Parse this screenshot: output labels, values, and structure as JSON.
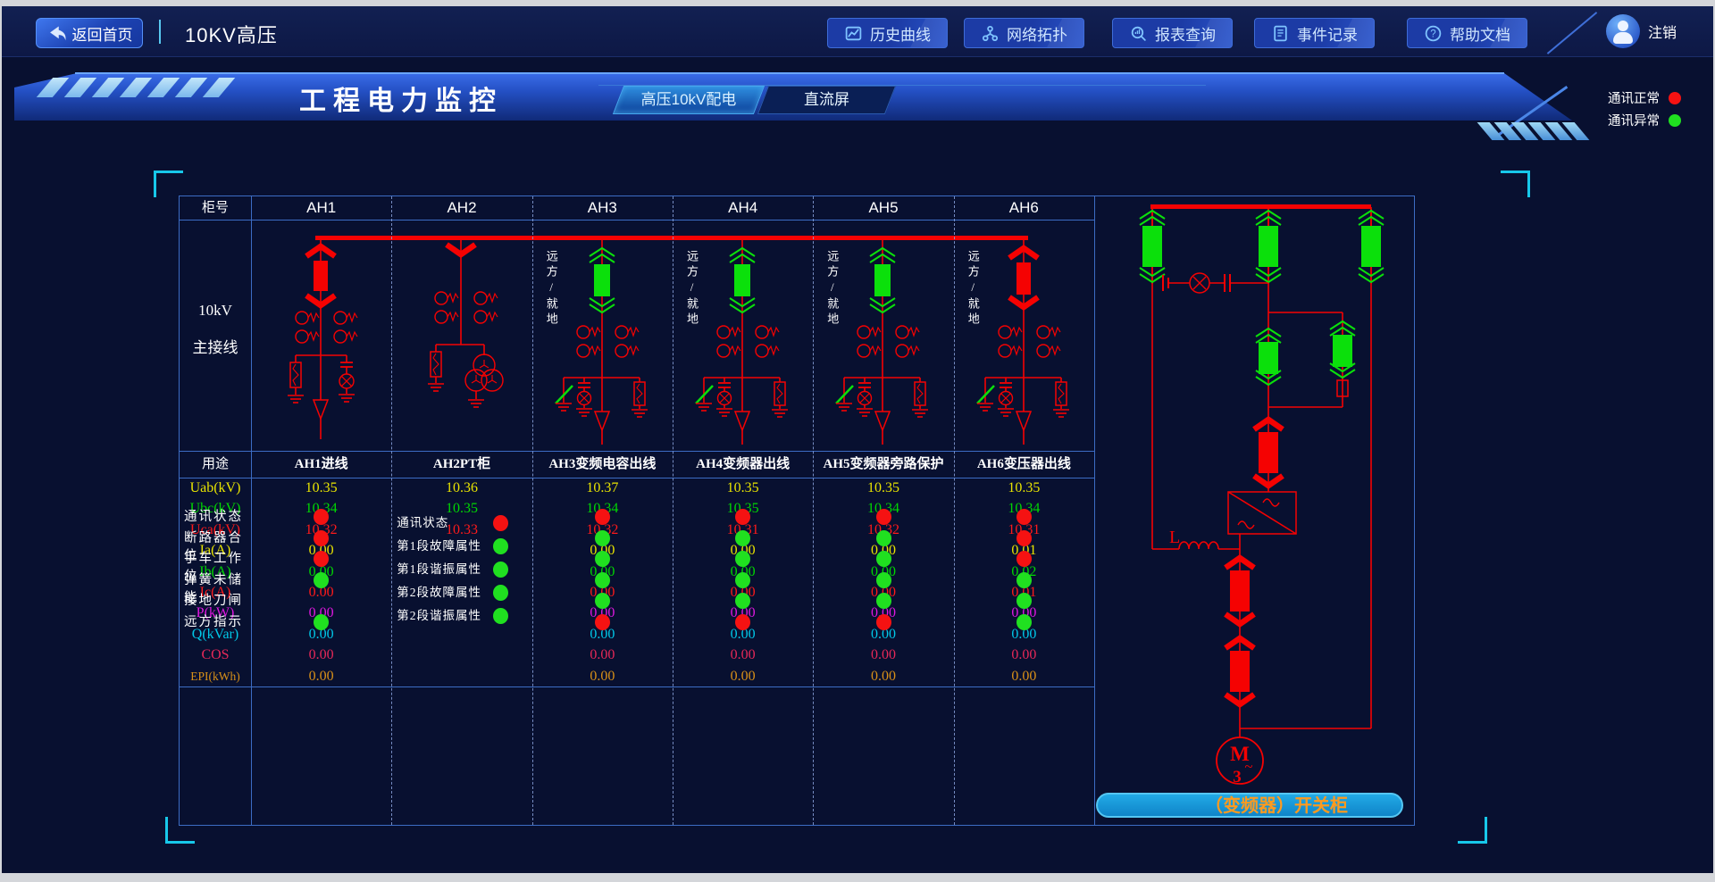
{
  "topbar": {
    "back_button": {
      "label": "返回首页",
      "icon": "back-arrow-icon"
    },
    "page_title": "10KV高压",
    "nav_buttons": [
      {
        "id": "history",
        "label": "历史曲线",
        "icon": "curve-chart-icon"
      },
      {
        "id": "topology",
        "label": "网络拓扑",
        "icon": "topology-icon"
      },
      {
        "id": "report",
        "label": "报表查询",
        "icon": "report-search-icon"
      },
      {
        "id": "events",
        "label": "事件记录",
        "icon": "event-log-icon"
      },
      {
        "id": "help",
        "label": "帮助文档",
        "icon": "help-icon"
      }
    ],
    "user": {
      "logout_label": "注销",
      "icon": "user-avatar-icon"
    }
  },
  "banner": {
    "title": "工程电力监控",
    "tabs": [
      {
        "label": "高压10kV配电",
        "active": true
      },
      {
        "label": "直流屏",
        "active": false
      }
    ],
    "comm_legend": [
      {
        "label": "通讯正常",
        "color": "#f51212"
      },
      {
        "label": "通讯异常",
        "color": "#20e020"
      }
    ]
  },
  "switchgear_table": {
    "header_label": "柜号",
    "diagram_row_label": [
      "10kV",
      "主接线"
    ],
    "remote_local_label": "远方/就地",
    "usage_row_label": "用途",
    "cabinets": [
      {
        "id": "AH1",
        "usage": "AH1进线",
        "diagram": "incoming-red-breaker",
        "remote_local": false
      },
      {
        "id": "AH2",
        "usage": "AH2PT柜",
        "diagram": "pt-cabinet",
        "remote_local": false
      },
      {
        "id": "AH3",
        "usage": "AH3变频电容出线",
        "diagram": "feeder-green-breaker",
        "remote_local": true
      },
      {
        "id": "AH4",
        "usage": "AH4变频器出线",
        "diagram": "feeder-green-breaker",
        "remote_local": true
      },
      {
        "id": "AH5",
        "usage": "AH5变频器旁路保护",
        "diagram": "feeder-green-breaker",
        "remote_local": true
      },
      {
        "id": "AH6",
        "usage": "AH6变压器出线",
        "diagram": "feeder-red-breaker",
        "remote_local": true
      }
    ],
    "measurements": [
      {
        "label": "Uab(kV)",
        "color": "#e8e400",
        "values": [
          "10.35",
          "10.36",
          "10.37",
          "10.35",
          "10.35",
          "10.35"
        ]
      },
      {
        "label": "Ubc(kV)",
        "color": "#00d800",
        "values": [
          "10.34",
          "10.35",
          "10.34",
          "10.35",
          "10.34",
          "10.34"
        ]
      },
      {
        "label": "Uca(kV)",
        "color": "#ff1a1a",
        "values": [
          "10.32",
          "10.33",
          "10.32",
          "10.31",
          "10.32",
          "10.31"
        ]
      },
      {
        "label": "Ia(A)",
        "color": "#e8e400",
        "values": [
          "0.00",
          "",
          "0.00",
          "0.00",
          "0.00",
          "0.01"
        ]
      },
      {
        "label": "Ib(A)",
        "color": "#00d800",
        "values": [
          "0.00",
          "",
          "0.00",
          "0.00",
          "0.00",
          "0.02"
        ]
      },
      {
        "label": "Ic(A)",
        "color": "#ff1a1a",
        "values": [
          "0.00",
          "",
          "0.00",
          "0.00",
          "0.00",
          "0.01"
        ]
      },
      {
        "label": "P(kW)",
        "color": "#e018e0",
        "values": [
          "0.00",
          "",
          "0.00",
          "0.00",
          "0.00",
          "0.00"
        ]
      },
      {
        "label": "Q(kVar)",
        "color": "#00c8e8",
        "values": [
          "0.00",
          "",
          "0.00",
          "0.00",
          "0.00",
          "0.00"
        ]
      },
      {
        "label": "COS",
        "color": "#e82858",
        "values": [
          "0.00",
          "",
          "0.00",
          "0.00",
          "0.00",
          "0.00"
        ]
      },
      {
        "label": "EPI(kWh)",
        "color": "#d89018",
        "values": [
          "0.00",
          "",
          "0.00",
          "0.00",
          "0.00",
          "0.00"
        ]
      }
    ],
    "status_row_labels": [
      "通讯状态",
      "断路器合位",
      "手车工作位",
      "弹簧未储能",
      "接地刀闸",
      "远方指示"
    ],
    "ah2_status_labels": [
      "通讯状态",
      "第1段故障属性",
      "第1段谐振属性",
      "第2段故障属性",
      "第2段谐振属性"
    ],
    "status_dots": {
      "AH1": [
        "red",
        "red",
        "red",
        "green",
        null,
        "green"
      ],
      "AH2": [
        "red",
        "green",
        "green",
        "green",
        "green"
      ],
      "AH3": [
        "red",
        "green",
        "green",
        "green",
        "green",
        "red"
      ],
      "AH4": [
        "red",
        "green",
        "green",
        "green",
        "green",
        "red"
      ],
      "AH5": [
        "red",
        "green",
        "green",
        "green",
        "green",
        "red"
      ],
      "AH6": [
        "red",
        "red",
        "red",
        "green",
        "green",
        "green"
      ]
    },
    "dot_colors": {
      "red": "#f51212",
      "green": "#20e020"
    }
  },
  "right_panel": {
    "inductor_label": "L",
    "motor": {
      "letter": "M",
      "wave": "~",
      "phases": "3"
    },
    "cabinet_banner": "（变频器）开关柜"
  },
  "colors": {
    "diagram_red": "#f50202",
    "breaker_closed_green": "#0be00b",
    "bus_color": "#f50202",
    "banner_button_bg": "#1490d4",
    "banner_button_text": "#ff9a1e"
  }
}
